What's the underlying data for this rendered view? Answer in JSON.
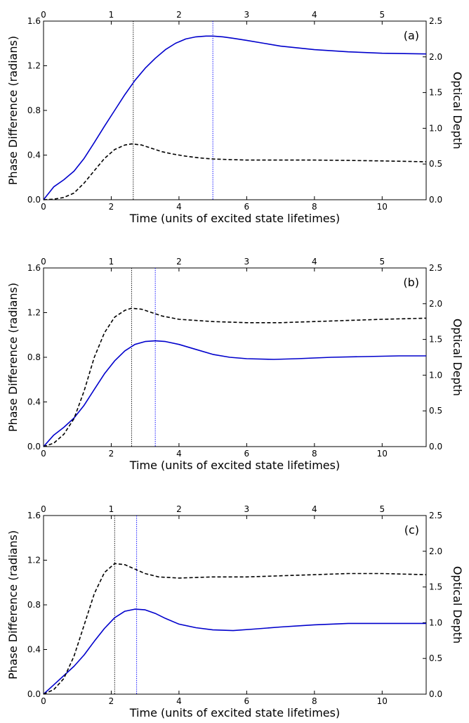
{
  "figure": {
    "xlabel": "Time (units of excited state lifetimes)",
    "ylabel_left": "Phase Difference (radians)",
    "ylabel_right": "Optical Depth"
  },
  "chart_data": [
    {
      "type": "line",
      "panel_label": "(a)",
      "xlabel": "Time (units of excited state lifetimes)",
      "ylabel": "Phase Difference (radians)",
      "ylabel_right": "Optical Depth",
      "xlim": [
        0,
        11.3
      ],
      "ylim": [
        0,
        1.6
      ],
      "ylim_right": [
        0,
        2.5
      ],
      "x_ticks": [
        0,
        2,
        4,
        6,
        8,
        10
      ],
      "y_ticks": [
        0.0,
        0.4,
        0.8,
        1.2,
        1.6
      ],
      "y_ticks_right": [
        0.0,
        0.5,
        1.0,
        1.5,
        2.0,
        2.5
      ],
      "top_x_ticks": [
        0,
        1,
        2,
        3,
        4,
        5
      ],
      "top_xlim": [
        0,
        5.65
      ],
      "vlines": [
        {
          "x": 2.65,
          "color": "#000000"
        },
        {
          "x": 5.0,
          "color": "#0000ff"
        }
      ],
      "series": [
        {
          "style": "solid",
          "color": "#0000cc",
          "axis": "right",
          "x": [
            0,
            0.3,
            0.6,
            0.9,
            1.2,
            1.5,
            1.8,
            2.1,
            2.4,
            2.7,
            3.0,
            3.3,
            3.6,
            3.9,
            4.2,
            4.5,
            4.8,
            5.0,
            5.3,
            5.6,
            6.0,
            6.5,
            7.0,
            8.0,
            9.0,
            10.0,
            11.3
          ],
          "y": [
            0,
            0.18,
            0.28,
            0.4,
            0.58,
            0.8,
            1.03,
            1.25,
            1.47,
            1.67,
            1.84,
            1.98,
            2.1,
            2.19,
            2.25,
            2.28,
            2.29,
            2.29,
            2.28,
            2.26,
            2.23,
            2.19,
            2.15,
            2.1,
            2.07,
            2.05,
            2.04
          ]
        },
        {
          "style": "dashed",
          "color": "#000000",
          "axis": "left",
          "x": [
            0,
            0.3,
            0.6,
            0.9,
            1.2,
            1.5,
            1.8,
            2.1,
            2.4,
            2.6,
            2.9,
            3.2,
            3.5,
            3.8,
            4.2,
            4.6,
            5.0,
            5.5,
            6.0,
            7.0,
            8.0,
            9.0,
            10.0,
            11.3
          ],
          "y": [
            0,
            0.005,
            0.02,
            0.06,
            0.15,
            0.26,
            0.37,
            0.45,
            0.49,
            0.5,
            0.49,
            0.46,
            0.43,
            0.41,
            0.39,
            0.375,
            0.365,
            0.36,
            0.355,
            0.355,
            0.355,
            0.352,
            0.348,
            0.34
          ]
        }
      ]
    },
    {
      "type": "line",
      "panel_label": "(b)",
      "xlabel": "Time (units of excited state lifetimes)",
      "ylabel": "Phase Difference (radians)",
      "ylabel_right": "Optical Depth",
      "xlim": [
        0,
        11.3
      ],
      "ylim": [
        0,
        1.6
      ],
      "ylim_right": [
        0,
        2.5
      ],
      "x_ticks": [
        0,
        2,
        4,
        6,
        8,
        10
      ],
      "y_ticks": [
        0.0,
        0.4,
        0.8,
        1.2,
        1.6
      ],
      "y_ticks_right": [
        0.0,
        0.5,
        1.0,
        1.5,
        2.0,
        2.5
      ],
      "top_x_ticks": [
        0,
        1,
        2,
        3,
        4,
        5
      ],
      "top_xlim": [
        0,
        5.65
      ],
      "vlines": [
        {
          "x": 2.6,
          "color": "#000000"
        },
        {
          "x": 3.3,
          "color": "#0000ff"
        }
      ],
      "series": [
        {
          "style": "solid",
          "color": "#0000cc",
          "axis": "right",
          "x": [
            0,
            0.3,
            0.6,
            0.9,
            1.2,
            1.5,
            1.8,
            2.1,
            2.4,
            2.7,
            3.0,
            3.3,
            3.6,
            4.0,
            4.5,
            5.0,
            5.5,
            6.0,
            6.8,
            7.5,
            8.5,
            9.5,
            10.5,
            11.3
          ],
          "y": [
            0,
            0.16,
            0.27,
            0.4,
            0.58,
            0.8,
            1.02,
            1.2,
            1.34,
            1.43,
            1.47,
            1.48,
            1.47,
            1.43,
            1.36,
            1.29,
            1.25,
            1.23,
            1.22,
            1.23,
            1.25,
            1.26,
            1.27,
            1.27
          ]
        },
        {
          "style": "dashed",
          "color": "#000000",
          "axis": "left",
          "x": [
            0,
            0.3,
            0.6,
            0.9,
            1.2,
            1.5,
            1.8,
            2.1,
            2.4,
            2.6,
            2.9,
            3.2,
            3.5,
            4.0,
            4.5,
            5.0,
            6.0,
            7.0,
            8.0,
            9.0,
            10.0,
            11.3
          ],
          "y": [
            0,
            0.03,
            0.11,
            0.25,
            0.5,
            0.8,
            1.02,
            1.16,
            1.22,
            1.24,
            1.23,
            1.2,
            1.17,
            1.14,
            1.13,
            1.12,
            1.11,
            1.11,
            1.12,
            1.13,
            1.14,
            1.15
          ]
        }
      ]
    },
    {
      "type": "line",
      "panel_label": "(c)",
      "xlabel": "Time (units of excited state lifetimes)",
      "ylabel": "Phase Difference (radians)",
      "ylabel_right": "Optical Depth",
      "xlim": [
        0,
        11.3
      ],
      "ylim": [
        0,
        1.6
      ],
      "ylim_right": [
        0,
        2.5
      ],
      "x_ticks": [
        0,
        2,
        4,
        6,
        8,
        10
      ],
      "y_ticks": [
        0.0,
        0.4,
        0.8,
        1.2,
        1.6
      ],
      "y_ticks_right": [
        0.0,
        0.5,
        1.0,
        1.5,
        2.0,
        2.5
      ],
      "top_x_ticks": [
        0,
        1,
        2,
        3,
        4,
        5
      ],
      "top_xlim": [
        0,
        5.65
      ],
      "vlines": [
        {
          "x": 2.1,
          "color": "#000000"
        },
        {
          "x": 2.75,
          "color": "#0000ff"
        }
      ],
      "series": [
        {
          "style": "solid",
          "color": "#0000cc",
          "axis": "right",
          "x": [
            0,
            0.3,
            0.6,
            0.9,
            1.2,
            1.5,
            1.8,
            2.1,
            2.4,
            2.7,
            3.0,
            3.3,
            3.6,
            4.0,
            4.5,
            5.0,
            5.6,
            6.2,
            7.0,
            8.0,
            9.0,
            10.0,
            11.3
          ],
          "y": [
            0,
            0.13,
            0.26,
            0.39,
            0.55,
            0.74,
            0.92,
            1.07,
            1.16,
            1.19,
            1.18,
            1.13,
            1.06,
            0.98,
            0.93,
            0.9,
            0.89,
            0.91,
            0.94,
            0.97,
            0.99,
            0.99,
            0.99
          ]
        },
        {
          "style": "dashed",
          "color": "#000000",
          "axis": "left",
          "x": [
            0,
            0.3,
            0.6,
            0.9,
            1.2,
            1.5,
            1.8,
            2.1,
            2.4,
            2.7,
            3.0,
            3.4,
            4.0,
            5.0,
            6.0,
            7.0,
            8.0,
            9.0,
            10.0,
            11.3
          ],
          "y": [
            0,
            0.04,
            0.14,
            0.34,
            0.62,
            0.9,
            1.09,
            1.17,
            1.16,
            1.12,
            1.08,
            1.05,
            1.04,
            1.05,
            1.05,
            1.06,
            1.07,
            1.08,
            1.08,
            1.07
          ]
        }
      ]
    }
  ]
}
